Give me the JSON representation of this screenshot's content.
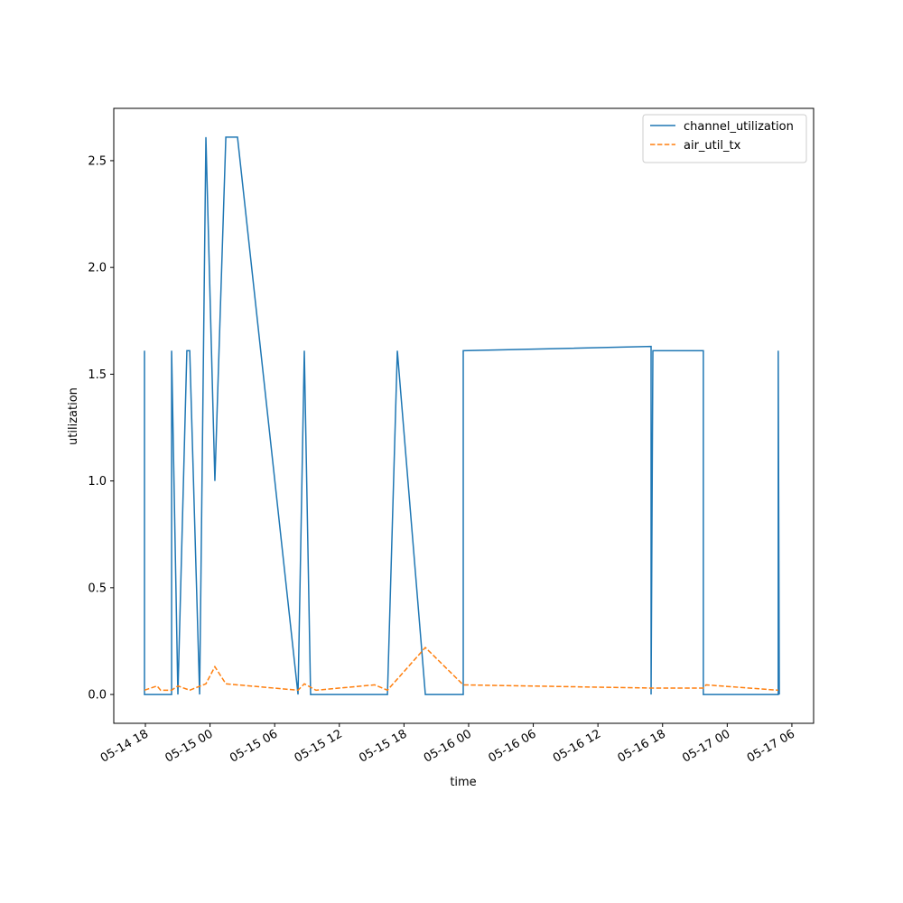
{
  "chart_data": {
    "type": "line",
    "x_label": "time",
    "y_label": "utilization",
    "xlim": [
      "05-14 15:04",
      "05-17 08:01"
    ],
    "xticks": [
      "05-14 18",
      "05-15 00",
      "05-15 06",
      "05-15 12",
      "05-15 18",
      "05-16 00",
      "05-16 06",
      "05-16 12",
      "05-16 18",
      "05-17 00",
      "05-17 06"
    ],
    "ylim": [
      -0.135,
      2.745
    ],
    "yticks": [
      {
        "value": 0,
        "label": "0.0"
      },
      0.5,
      {
        "value": 1,
        "label": "1.0"
      },
      1.5,
      {
        "value": 2,
        "label": "2.0"
      },
      2.5
    ],
    "legend": "upper right",
    "series": [
      {
        "name": "channel_utilization",
        "color": "#1f77b4",
        "dash": "solid",
        "x": [
          "05-14 17:55",
          "05-14 17:55",
          "05-14 20:26",
          "05-14 20:26",
          "05-14 21:01",
          "05-14 21:51",
          "05-14 22:07",
          "05-14 23:02",
          "05-14 23:37",
          "05-15 00:27",
          "05-15 01:28",
          "05-15 02:33",
          "05-15 08:10",
          "05-15 08:45",
          "05-15 09:20",
          "05-15 16:28",
          "05-15 17:23",
          "05-15 19:59",
          "05-15 23:30",
          "05-15 23:30",
          "05-16 16:56",
          "05-16 16:56",
          "05-16 17:06",
          "05-16 21:47",
          "05-16 21:47",
          "05-17 04:44",
          "05-17 04:44",
          "05-17 04:50"
        ],
        "values": [
          1.61,
          0,
          0,
          1.61,
          0,
          1.61,
          1.61,
          0,
          2.61,
          1.0,
          2.61,
          2.61,
          0,
          1.61,
          0,
          0,
          1.61,
          0,
          0,
          1.61,
          1.63,
          0,
          1.61,
          1.61,
          0,
          0,
          1.61,
          0
        ]
      },
      {
        "name": "air_util_tx",
        "color": "#ff7f0e",
        "dash": "dashed",
        "x": [
          "05-14 17:55",
          "05-14 19:05",
          "05-14 19:25",
          "05-14 20:26",
          "05-14 21:01",
          "05-14 22:07",
          "05-14 23:37",
          "05-15 00:27",
          "05-15 01:28",
          "05-15 08:10",
          "05-15 08:45",
          "05-15 09:50",
          "05-15 15:17",
          "05-15 16:28",
          "05-15 19:59",
          "05-15 23:30",
          "05-16 16:56",
          "05-16 21:47",
          "05-16 22:02",
          "05-17 04:44"
        ],
        "values": [
          0.02,
          0.04,
          0.02,
          0.02,
          0.04,
          0.02,
          0.05,
          0.13,
          0.05,
          0.02,
          0.05,
          0.02,
          0.045,
          0.02,
          0.22,
          0.045,
          0.03,
          0.03,
          0.045,
          0.02
        ]
      }
    ]
  }
}
